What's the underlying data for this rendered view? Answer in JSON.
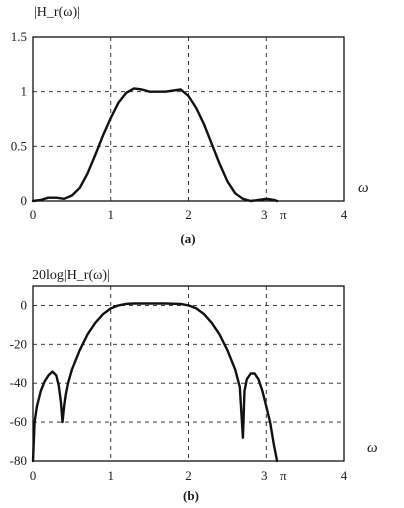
{
  "chart_data": [
    {
      "type": "line",
      "ylabel": "|H_r(ω)|",
      "xlabel": "ω",
      "caption": "(a)",
      "xlim": [
        0,
        4
      ],
      "ylim": [
        0,
        1.5
      ],
      "xticks": [
        "0",
        "1",
        "2",
        "3",
        "π",
        "4"
      ],
      "yticks": [
        "0",
        "0.5",
        "1",
        "1.5"
      ],
      "grid": true,
      "series": [
        {
          "x": [
            0,
            0.1,
            0.2,
            0.3,
            0.4,
            0.5,
            0.6,
            0.7,
            0.8,
            0.9,
            1.0,
            1.1,
            1.2,
            1.3,
            1.4,
            1.5,
            1.6,
            1.7,
            1.8,
            1.9,
            2.0,
            2.1,
            2.2,
            2.3,
            2.4,
            2.5,
            2.6,
            2.7,
            2.8,
            2.9,
            3.0,
            3.1,
            3.14
          ],
          "y": [
            0.0,
            0.01,
            0.03,
            0.03,
            0.02,
            0.05,
            0.12,
            0.25,
            0.42,
            0.6,
            0.76,
            0.9,
            0.99,
            1.03,
            1.02,
            1.0,
            1.0,
            1.0,
            1.01,
            1.02,
            0.96,
            0.85,
            0.7,
            0.52,
            0.34,
            0.18,
            0.07,
            0.02,
            0.0,
            0.01,
            0.02,
            0.01,
            0.0
          ]
        }
      ]
    },
    {
      "type": "line",
      "ylabel": "20log|H_r(ω)|",
      "xlabel": "ω",
      "caption": "(b)",
      "xlim": [
        0,
        4
      ],
      "ylim": [
        -80,
        10
      ],
      "xticks": [
        "0",
        "1",
        "2",
        "3",
        "π",
        "4"
      ],
      "yticks": [
        "0",
        "-20",
        "-40",
        "-60",
        "-80"
      ],
      "grid": true,
      "series": [
        {
          "x": [
            0,
            0.02,
            0.05,
            0.1,
            0.15,
            0.2,
            0.25,
            0.3,
            0.33,
            0.36,
            0.38,
            0.4,
            0.42,
            0.45,
            0.5,
            0.6,
            0.7,
            0.8,
            0.9,
            1.0,
            1.1,
            1.2,
            1.3,
            1.5,
            1.7,
            1.9,
            2.0,
            2.1,
            2.2,
            2.3,
            2.4,
            2.5,
            2.6,
            2.66,
            2.7,
            2.72,
            2.75,
            2.8,
            2.85,
            2.9,
            2.95,
            3.0,
            3.05,
            3.1,
            3.14
          ],
          "y": [
            -80,
            -60,
            -52,
            -44,
            -39,
            -36,
            -34,
            -36,
            -41,
            -50,
            -60,
            -52,
            -46,
            -40,
            -33,
            -23,
            -15,
            -9,
            -4.5,
            -1.5,
            0,
            0.8,
            1.0,
            1.0,
            1.0,
            0.8,
            0,
            -1.5,
            -4.5,
            -9,
            -15,
            -23,
            -33,
            -42,
            -68,
            -44,
            -38,
            -35,
            -35,
            -38,
            -44,
            -52,
            -60,
            -72,
            -80
          ]
        }
      ]
    }
  ]
}
